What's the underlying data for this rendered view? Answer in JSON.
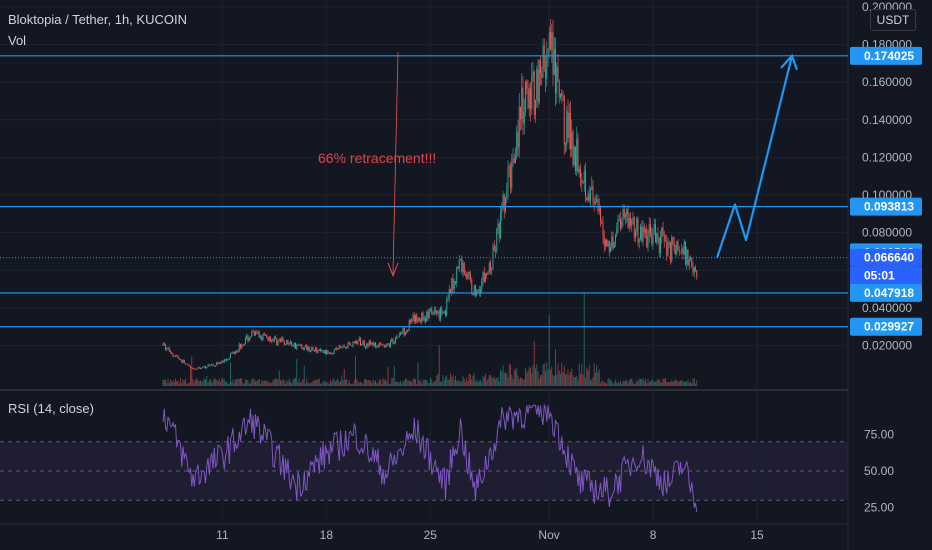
{
  "header": {
    "symbol_line": "Bloktopia / Tether, 1h, KUCOIN",
    "volume_label": "Vol",
    "currency": "USDT"
  },
  "rsi": {
    "label": "RSI (14, close)",
    "levels": [
      "75.00",
      "50.00",
      "25.00"
    ]
  },
  "annotation": {
    "text": "66% retracement!!!",
    "color": "#e0434d"
  },
  "colors": {
    "background": "#131722",
    "up": "#26a69a",
    "down": "#ef5350",
    "level_line": "#2962ff",
    "level_tag": "#2196f3",
    "rsi_line": "#7e57c2",
    "arrow": "#2196f3"
  },
  "chart_data": [
    {
      "type": "candlestick",
      "title": "Bloktopia / Tether, 1h, KUCOIN",
      "y_axis_ticks": [
        "0.200000",
        "0.180000",
        "0.160000",
        "0.140000",
        "0.120000",
        "0.100000",
        "0.080000",
        "0.060000",
        "0.040000",
        "0.020000"
      ],
      "ylim": [
        0.0,
        0.2
      ],
      "x_axis_ticks": [
        "11",
        "18",
        "25",
        "Nov",
        "8",
        "15"
      ],
      "price_path": [
        {
          "t": "Oct 7",
          "p": 0.02
        },
        {
          "t": "Oct 9",
          "p": 0.007
        },
        {
          "t": "Oct 11",
          "p": 0.011
        },
        {
          "t": "Oct 13",
          "p": 0.026
        },
        {
          "t": "Oct 16",
          "p": 0.02
        },
        {
          "t": "Oct 18",
          "p": 0.016
        },
        {
          "t": "Oct 20",
          "p": 0.022
        },
        {
          "t": "Oct 22",
          "p": 0.019
        },
        {
          "t": "Oct 24",
          "p": 0.034
        },
        {
          "t": "Oct 26",
          "p": 0.039
        },
        {
          "t": "Oct 27",
          "p": 0.065
        },
        {
          "t": "Oct 28",
          "p": 0.048
        },
        {
          "t": "Oct 29",
          "p": 0.06
        },
        {
          "t": "Oct 30",
          "p": 0.095
        },
        {
          "t": "Oct 31",
          "p": 0.14
        },
        {
          "t": "Nov 1",
          "p": 0.176
        },
        {
          "t": "Nov 2",
          "p": 0.14
        },
        {
          "t": "Nov 3",
          "p": 0.12
        },
        {
          "t": "Nov 4",
          "p": 0.095
        },
        {
          "t": "Nov 5",
          "p": 0.072
        },
        {
          "t": "Nov 6",
          "p": 0.092
        },
        {
          "t": "Nov 7",
          "p": 0.08
        },
        {
          "t": "Nov 8",
          "p": 0.078
        },
        {
          "t": "Nov 10",
          "p": 0.07
        },
        {
          "t": "Nov 11",
          "p": 0.06
        }
      ],
      "horizontal_levels": [
        0.174025,
        0.093813,
        0.047918,
        0.029927
      ],
      "price_tags": [
        {
          "label": "0.174025",
          "value": 0.174025
        },
        {
          "label": "0.093813",
          "value": 0.093813
        },
        {
          "label": "0.069508",
          "value": 0.069508
        },
        {
          "label": "0.066640",
          "value": 0.06664
        },
        {
          "label": "05:01",
          "value": null
        },
        {
          "label": "0.047918",
          "value": 0.047918
        },
        {
          "label": "0.029927",
          "value": 0.029927
        }
      ],
      "current_price": 0.06664,
      "projection_path": [
        0.06664,
        0.095,
        0.076,
        0.174025
      ]
    },
    {
      "type": "line",
      "title": "RSI (14, close)",
      "y_axis_ticks": [
        "75.00",
        "50.00",
        "25.00"
      ],
      "ylim": [
        25,
        95
      ],
      "band": [
        30,
        70
      ],
      "rsi_path": [
        {
          "t": "Oct 7",
          "v": 92
        },
        {
          "t": "Oct 9",
          "v": 45
        },
        {
          "t": "Oct 11",
          "v": 60
        },
        {
          "t": "Oct 13",
          "v": 85
        },
        {
          "t": "Oct 16",
          "v": 40
        },
        {
          "t": "Oct 18",
          "v": 62
        },
        {
          "t": "Oct 20",
          "v": 75
        },
        {
          "t": "Oct 22",
          "v": 48
        },
        {
          "t": "Oct 24",
          "v": 78
        },
        {
          "t": "Oct 26",
          "v": 40
        },
        {
          "t": "Oct 27",
          "v": 80
        },
        {
          "t": "Oct 28",
          "v": 35
        },
        {
          "t": "Oct 30",
          "v": 88
        },
        {
          "t": "Nov 1",
          "v": 92
        },
        {
          "t": "Nov 3",
          "v": 42
        },
        {
          "t": "Nov 5",
          "v": 35
        },
        {
          "t": "Nov 7",
          "v": 62
        },
        {
          "t": "Nov 9",
          "v": 40
        },
        {
          "t": "Nov 10",
          "v": 55
        },
        {
          "t": "Nov 11",
          "v": 26
        }
      ]
    }
  ]
}
